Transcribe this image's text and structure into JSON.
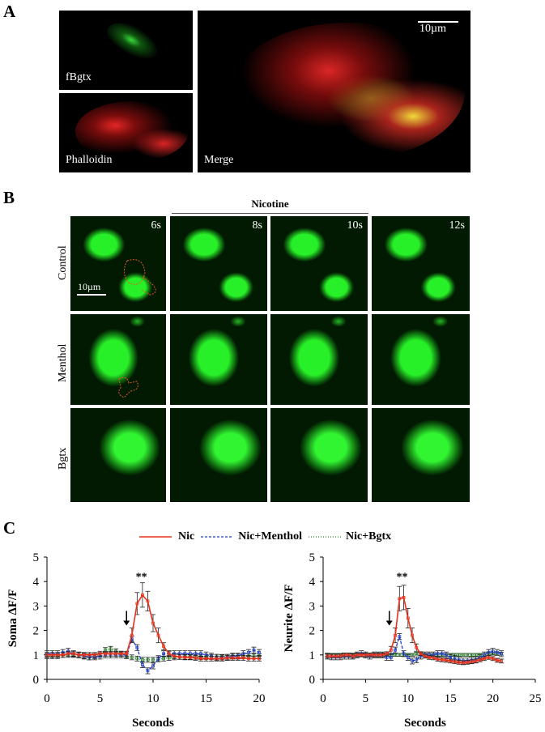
{
  "panel_a": {
    "label": "A",
    "images": [
      {
        "label": "fBgtx"
      },
      {
        "label": "Phalloidin"
      },
      {
        "label": "Merge"
      }
    ],
    "scale_bar": "10µm"
  },
  "panel_b": {
    "label": "B",
    "treatment": "Nicotine",
    "timepoints": [
      "6s",
      "8s",
      "10s",
      "12s"
    ],
    "rows": [
      "Control",
      "Menthol",
      "Bgtx"
    ],
    "scale_bar": "10µm"
  },
  "panel_c": {
    "label": "C"
  },
  "chart_data": [
    {
      "type": "line",
      "ylabel": "Soma ΔF/F",
      "xlabel": "Seconds",
      "xlim": [
        0,
        20
      ],
      "ylim": [
        0,
        5
      ],
      "xticks": [
        0,
        5,
        10,
        15,
        20
      ],
      "yticks": [
        0,
        1,
        2,
        3,
        4,
        5
      ],
      "annotation": "**",
      "arrow_at_x": 7.5,
      "x": [
        0,
        0.5,
        1,
        1.5,
        2,
        2.5,
        3,
        3.5,
        4,
        4.5,
        5,
        5.5,
        6,
        6.5,
        7,
        7.5,
        8,
        8.5,
        9,
        9.5,
        10,
        10.5,
        11,
        11.5,
        12,
        12.5,
        13,
        13.5,
        14,
        14.5,
        15,
        15.5,
        16,
        16.5,
        17,
        17.5,
        18,
        18.5,
        19,
        19.5,
        20
      ],
      "series": [
        {
          "name": "Nic",
          "color": "#e8321e",
          "dash": "solid",
          "values": [
            1.0,
            1.0,
            1.0,
            1.0,
            1.05,
            1.05,
            1.0,
            1.0,
            1.0,
            1.0,
            1.05,
            1.05,
            1.05,
            1.05,
            1.05,
            1.05,
            1.8,
            3.1,
            3.45,
            3.2,
            2.3,
            1.8,
            1.35,
            1.05,
            0.95,
            0.92,
            0.9,
            0.9,
            0.88,
            0.85,
            0.85,
            0.85,
            0.85,
            0.85,
            0.88,
            0.88,
            0.88,
            0.88,
            0.85,
            0.85,
            0.85
          ],
          "err": [
            0.1,
            0.1,
            0.1,
            0.1,
            0.1,
            0.1,
            0.1,
            0.1,
            0.1,
            0.1,
            0.1,
            0.1,
            0.1,
            0.1,
            0.1,
            0.1,
            0.3,
            0.45,
            0.5,
            0.4,
            0.35,
            0.3,
            0.15,
            0.1,
            0.1,
            0.1,
            0.1,
            0.1,
            0.1,
            0.1,
            0.1,
            0.1,
            0.1,
            0.1,
            0.1,
            0.1,
            0.1,
            0.1,
            0.1,
            0.1,
            0.1
          ]
        },
        {
          "name": "Nic+Menthol",
          "color": "#1f3fc8",
          "dash": "dashed",
          "values": [
            1.05,
            1.05,
            1.05,
            1.1,
            1.15,
            1.05,
            1.0,
            0.95,
            0.92,
            0.92,
            0.95,
            1.0,
            1.0,
            1.0,
            1.0,
            1.0,
            1.65,
            1.3,
            0.6,
            0.35,
            0.55,
            0.85,
            1.05,
            1.05,
            1.05,
            1.05,
            1.05,
            1.05,
            1.05,
            1.05,
            1.0,
            0.95,
            0.9,
            0.88,
            0.9,
            0.95,
            0.95,
            1.05,
            1.1,
            1.2,
            1.1
          ],
          "err": 0.12
        },
        {
          "name": "Nic+Bgtx",
          "color": "#2a8a2a",
          "dash": "dotted",
          "values": [
            0.95,
            0.95,
            0.95,
            1.0,
            1.0,
            1.0,
            1.0,
            0.95,
            0.9,
            0.95,
            1.0,
            1.2,
            1.25,
            1.15,
            1.05,
            0.95,
            0.9,
            0.85,
            0.8,
            0.8,
            0.8,
            0.82,
            0.85,
            0.88,
            0.9,
            0.92,
            0.92,
            0.92,
            0.92,
            0.92,
            0.92,
            0.92,
            0.92,
            0.92,
            0.92,
            0.95,
            0.95,
            0.95,
            0.95,
            0.95,
            0.95
          ],
          "err": 0.1
        }
      ]
    },
    {
      "type": "line",
      "ylabel": "Neurite ΔF/F",
      "xlabel": "Seconds",
      "xlim": [
        0,
        25
      ],
      "ylim": [
        0,
        5
      ],
      "xticks": [
        0,
        5,
        10,
        15,
        20,
        25
      ],
      "yticks": [
        0,
        1,
        2,
        3,
        4,
        5
      ],
      "annotation": "**",
      "arrow_at_x": 7.8,
      "x": [
        0.5,
        1,
        1.5,
        2,
        2.5,
        3,
        3.5,
        4,
        4.5,
        5,
        5.5,
        6,
        6.5,
        7,
        7.5,
        8,
        8.5,
        9,
        9.5,
        10,
        10.5,
        11,
        11.5,
        12,
        12.5,
        13,
        13.5,
        14,
        14.5,
        15,
        15.5,
        16,
        16.5,
        17,
        17.5,
        18,
        18.5,
        19,
        19.5,
        20,
        20.5,
        21
      ],
      "series": [
        {
          "name": "Nic",
          "color": "#e8321e",
          "dash": "solid",
          "values": [
            0.95,
            0.95,
            0.95,
            0.95,
            1.0,
            1.0,
            0.95,
            1.0,
            1.0,
            1.0,
            1.0,
            1.0,
            1.0,
            1.0,
            1.05,
            1.2,
            1.8,
            3.3,
            3.35,
            2.5,
            1.8,
            1.3,
            1.05,
            0.95,
            0.9,
            0.88,
            0.82,
            0.8,
            0.78,
            0.75,
            0.72,
            0.7,
            0.68,
            0.7,
            0.72,
            0.75,
            0.8,
            0.85,
            0.9,
            0.85,
            0.78,
            0.75
          ],
          "err": [
            0.08,
            0.08,
            0.08,
            0.08,
            0.08,
            0.08,
            0.08,
            0.08,
            0.08,
            0.08,
            0.08,
            0.08,
            0.08,
            0.08,
            0.08,
            0.15,
            0.3,
            0.5,
            0.5,
            0.4,
            0.3,
            0.15,
            0.08,
            0.08,
            0.08,
            0.08,
            0.08,
            0.08,
            0.08,
            0.08,
            0.08,
            0.08,
            0.08,
            0.08,
            0.08,
            0.08,
            0.08,
            0.08,
            0.08,
            0.08,
            0.08,
            0.08
          ]
        },
        {
          "name": "Nic+Menthol",
          "color": "#1f3fc8",
          "dash": "dashed",
          "values": [
            0.95,
            0.92,
            0.92,
            0.92,
            0.95,
            0.95,
            0.95,
            1.0,
            1.05,
            1.0,
            0.95,
            1.0,
            1.0,
            1.0,
            0.9,
            0.9,
            1.2,
            1.75,
            1.05,
            0.9,
            0.75,
            0.8,
            0.95,
            1.0,
            1.0,
            1.0,
            1.05,
            1.05,
            1.0,
            0.9,
            0.85,
            0.8,
            0.75,
            0.75,
            0.78,
            0.8,
            0.9,
            1.0,
            1.1,
            1.15,
            1.1,
            1.05
          ],
          "err": 0.12
        },
        {
          "name": "Nic+Bgtx",
          "color": "#2a8a2a",
          "dash": "dotted",
          "values": [
            1.0,
            1.0,
            1.0,
            1.0,
            1.0,
            1.0,
            1.0,
            1.0,
            1.0,
            1.0,
            1.0,
            1.0,
            1.0,
            1.0,
            1.0,
            1.0,
            1.0,
            1.0,
            1.0,
            1.0,
            1.0,
            1.05,
            1.05,
            1.0,
            1.0,
            1.0,
            1.0,
            1.0,
            1.0,
            1.0,
            1.0,
            1.0,
            1.0,
            1.0,
            1.0,
            1.0,
            1.0,
            1.0,
            1.05,
            1.05,
            1.05,
            1.05
          ],
          "err": 0.06
        }
      ]
    }
  ]
}
